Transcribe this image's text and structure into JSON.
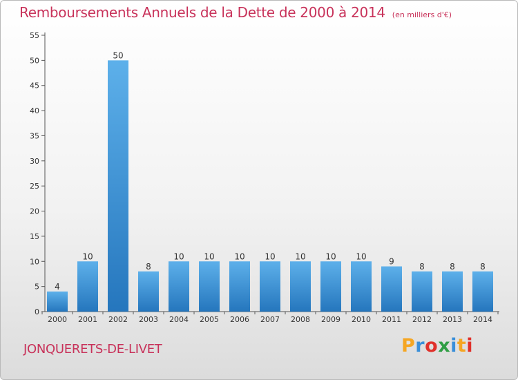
{
  "title": "Remboursements Annuels de la Dette de 2000 à 2014",
  "subtitle": "(en milliers d'€)",
  "commune": "JONQUERETS-DE-LIVET",
  "logo": {
    "text": "Proxiti",
    "letter_colors": [
      "#f5a623",
      "#3a8fd9",
      "#e0312b",
      "#2f9e44",
      "#3a8fd9",
      "#f5a623",
      "#e0312b"
    ]
  },
  "colors": {
    "title": "#c8325a",
    "bar_light": "#5db0ea",
    "bar_dark": "#2576bd",
    "axis": "#555555"
  },
  "chart_data": {
    "type": "bar",
    "categories": [
      "2000",
      "2001",
      "2002",
      "2003",
      "2004",
      "2005",
      "2006",
      "2007",
      "2008",
      "2009",
      "2010",
      "2011",
      "2012",
      "2013",
      "2014"
    ],
    "values": [
      4,
      10,
      50,
      8,
      10,
      10,
      10,
      10,
      10,
      10,
      10,
      9,
      8,
      8,
      8
    ],
    "title": "Remboursements Annuels de la Dette de 2000 à 2014",
    "xlabel": "",
    "ylabel": "",
    "ylim": [
      0,
      55
    ],
    "yticks": [
      0,
      5,
      10,
      15,
      20,
      25,
      30,
      35,
      40,
      45,
      50,
      55
    ],
    "grid": false,
    "data_labels": true
  }
}
